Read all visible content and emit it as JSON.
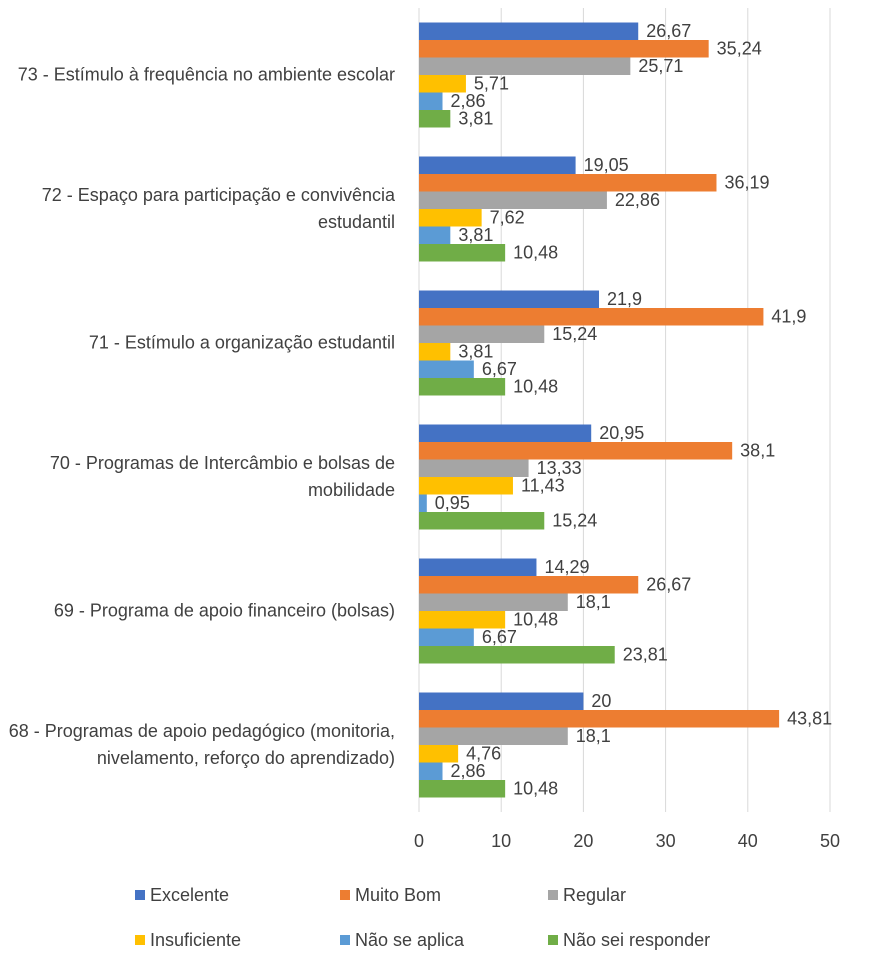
{
  "chart_data": {
    "type": "hbar",
    "categories": [
      "73 - Estímulo à frequência no ambiente escolar",
      "72 - Espaço para participação e convivência estudantil",
      "71 - Estímulo a organização estudantil",
      "70 - Programas de Intercâmbio e bolsas de mobilidade",
      "69 - Programa de apoio financeiro (bolsas)",
      "68 - Programas de apoio pedagógico (monitoria, nivelamento, reforço do aprendizado)"
    ],
    "series": [
      {
        "name": "Excelente",
        "color": "#4472c4",
        "values": [
          26.67,
          19.05,
          21.9,
          20.95,
          14.29,
          20
        ],
        "value_labels": [
          "26,67",
          "19,05",
          "21,9",
          "20,95",
          "14,29",
          "20"
        ]
      },
      {
        "name": "Muito Bom",
        "color": "#ed7d31",
        "values": [
          35.24,
          36.19,
          41.9,
          38.1,
          26.67,
          43.81
        ],
        "value_labels": [
          "35,24",
          "36,19",
          "41,9",
          "38,1",
          "26,67",
          "43,81"
        ]
      },
      {
        "name": "Regular",
        "color": "#a5a5a5",
        "values": [
          25.71,
          22.86,
          15.24,
          13.33,
          18.1,
          18.1
        ],
        "value_labels": [
          "25,71",
          "22,86",
          "15,24",
          "13,33",
          "18,1",
          "18,1"
        ]
      },
      {
        "name": "Insuficiente",
        "color": "#ffc000",
        "values": [
          5.71,
          7.62,
          3.81,
          11.43,
          10.48,
          4.76
        ],
        "value_labels": [
          "5,71",
          "7,62",
          "3,81",
          "11,43",
          "10,48",
          "4,76"
        ]
      },
      {
        "name": "Não se aplica",
        "color": "#5b9bd5",
        "values": [
          2.86,
          3.81,
          6.67,
          0.95,
          6.67,
          2.86
        ],
        "value_labels": [
          "2,86",
          "3,81",
          "6,67",
          "0,95",
          "6,67",
          "2,86"
        ]
      },
      {
        "name": "Não sei responder",
        "color": "#70ad47",
        "values": [
          3.81,
          10.48,
          10.48,
          15.24,
          23.81,
          10.48
        ],
        "value_labels": [
          "3,81",
          "10,48",
          "10,48",
          "15,24",
          "23,81",
          "10,48"
        ]
      }
    ],
    "xlim": [
      0,
      50
    ],
    "xticks": [
      0,
      10,
      20,
      30,
      40,
      50
    ],
    "grid": true,
    "legend": "bottom"
  }
}
